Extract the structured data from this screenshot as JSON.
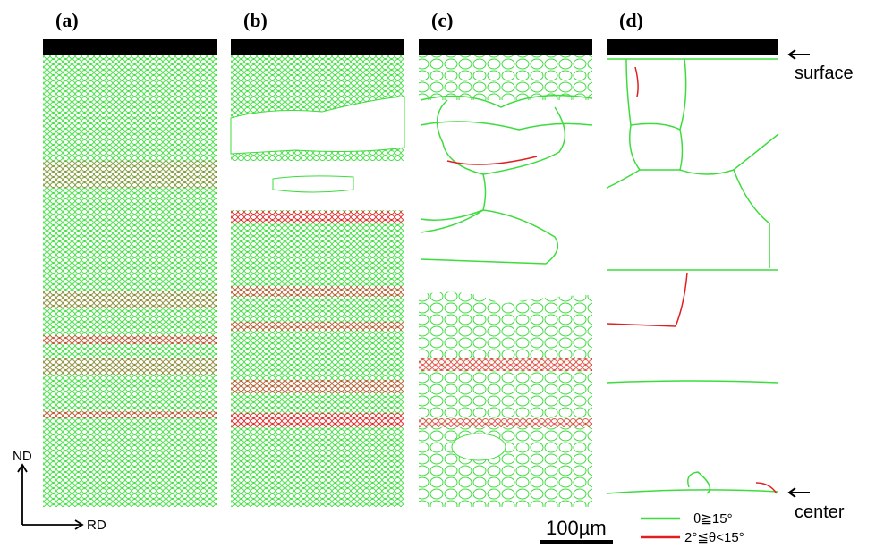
{
  "panels": [
    {
      "label": "(a)"
    },
    {
      "label": "(b)"
    },
    {
      "label": "(c)"
    },
    {
      "label": "(d)"
    }
  ],
  "annotations": {
    "surface": "surface",
    "center": "center"
  },
  "axes": {
    "nd": "ND",
    "rd": "RD"
  },
  "scale_bar": "100µm",
  "legend": [
    {
      "label": "θ≧15°",
      "color": "#3ddc3d"
    },
    {
      "label": "2°≦θ<15°",
      "color": "#e02020"
    }
  ]
}
